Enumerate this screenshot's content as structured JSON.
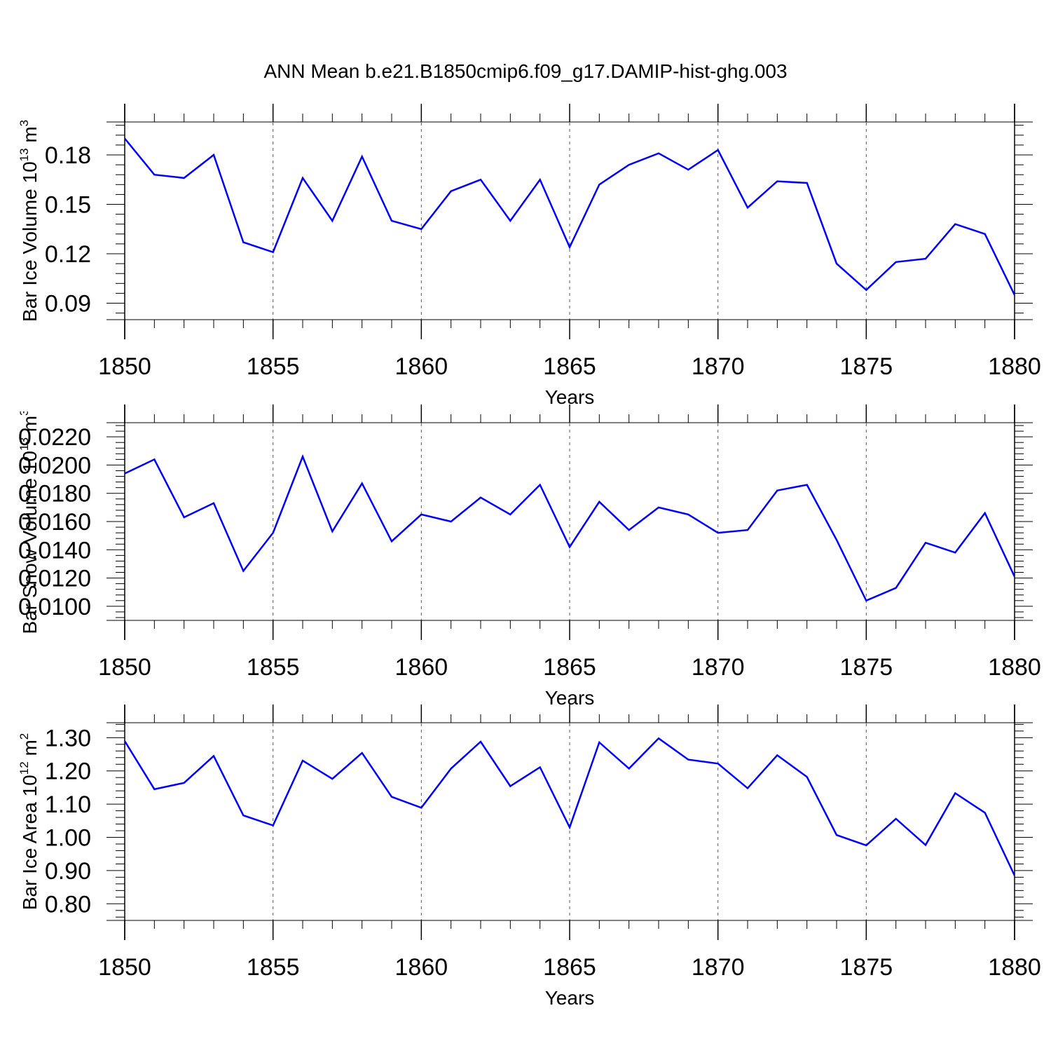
{
  "title": "ANN Mean b.e21.B1850cmip6.f09_g17.DAMIP-hist-ghg.003",
  "colors": {
    "series": "#0000ff",
    "axis": "#000000",
    "grid": "#555555"
  },
  "chart_data": [
    {
      "type": "line",
      "ylabel": {
        "main": "Bar Ice Volume 10",
        "exp": "13",
        "unit": " m",
        "unit_exp": "3"
      },
      "xlabel": "Years",
      "xlim": [
        1850,
        1880
      ],
      "ylim": [
        0.08,
        0.2
      ],
      "yticks": [
        0.09,
        0.12,
        0.15,
        0.18
      ],
      "ytick_labels": [
        "0.09",
        "0.12",
        "0.15",
        "0.18"
      ],
      "xticks": [
        1850,
        1855,
        1860,
        1865,
        1870,
        1875,
        1880
      ],
      "xtick_labels": [
        "1850",
        "1855",
        "1860",
        "1865",
        "1870",
        "1875",
        "1880"
      ],
      "grid": "vertical dashed at major x ticks",
      "series": [
        {
          "color": "#0000ff",
          "x": [
            1850,
            1851,
            1852,
            1853,
            1854,
            1855,
            1856,
            1857,
            1858,
            1859,
            1860,
            1861,
            1862,
            1863,
            1864,
            1865,
            1866,
            1867,
            1868,
            1869,
            1870,
            1871,
            1872,
            1873,
            1874,
            1875,
            1876,
            1877,
            1878,
            1879,
            1880
          ],
          "values": [
            0.19,
            0.168,
            0.166,
            0.18,
            0.127,
            0.121,
            0.166,
            0.14,
            0.179,
            0.14,
            0.135,
            0.158,
            0.165,
            0.14,
            0.165,
            0.124,
            0.162,
            0.174,
            0.181,
            0.171,
            0.183,
            0.148,
            0.164,
            0.163,
            0.114,
            0.098,
            0.115,
            0.117,
            0.138,
            0.132,
            0.095
          ]
        }
      ]
    },
    {
      "type": "line",
      "ylabel": {
        "main": "Bar Snow Volume 10",
        "exp": "13",
        "unit": " m",
        "unit_exp": "3"
      },
      "xlabel": "Years",
      "xlim": [
        1850,
        1880
      ],
      "ylim": [
        0.009,
        0.023
      ],
      "yticks": [
        0.01,
        0.012,
        0.014,
        0.016,
        0.018,
        0.02,
        0.022
      ],
      "ytick_labels": [
        "0.0100",
        "0.0120",
        "0.0140",
        "0.0160",
        "0.0180",
        "0.0200",
        "0.0220"
      ],
      "xticks": [
        1850,
        1855,
        1860,
        1865,
        1870,
        1875,
        1880
      ],
      "xtick_labels": [
        "1850",
        "1855",
        "1860",
        "1865",
        "1870",
        "1875",
        "1880"
      ],
      "grid": "vertical dashed at major x ticks",
      "series": [
        {
          "color": "#0000ff",
          "x": [
            1850,
            1851,
            1852,
            1853,
            1854,
            1855,
            1856,
            1857,
            1858,
            1859,
            1860,
            1861,
            1862,
            1863,
            1864,
            1865,
            1866,
            1867,
            1868,
            1869,
            1870,
            1871,
            1872,
            1873,
            1874,
            1875,
            1876,
            1877,
            1878,
            1879,
            1880
          ],
          "values": [
            0.0194,
            0.0204,
            0.0163,
            0.0173,
            0.0125,
            0.0152,
            0.0206,
            0.0153,
            0.0187,
            0.0146,
            0.0165,
            0.016,
            0.0177,
            0.0165,
            0.0186,
            0.0142,
            0.0174,
            0.0154,
            0.017,
            0.0165,
            0.0152,
            0.0154,
            0.0182,
            0.0186,
            0.0147,
            0.0104,
            0.0113,
            0.0145,
            0.0138,
            0.0166,
            0.0121
          ]
        }
      ]
    },
    {
      "type": "line",
      "ylabel": {
        "main": "Bar Ice Area 10",
        "exp": "12",
        "unit": " m",
        "unit_exp": "2"
      },
      "xlabel": "Years",
      "xlim": [
        1850,
        1880
      ],
      "ylim": [
        0.75,
        1.345
      ],
      "yticks": [
        0.8,
        0.9,
        1.0,
        1.1,
        1.2,
        1.3
      ],
      "ytick_labels": [
        "0.80",
        "0.90",
        "1.00",
        "1.10",
        "1.20",
        "1.30"
      ],
      "xticks": [
        1850,
        1855,
        1860,
        1865,
        1870,
        1875,
        1880
      ],
      "xtick_labels": [
        "1850",
        "1855",
        "1860",
        "1865",
        "1870",
        "1875",
        "1880"
      ],
      "grid": "vertical dashed at major x ticks",
      "series": [
        {
          "color": "#0000ff",
          "x": [
            1850,
            1851,
            1852,
            1853,
            1854,
            1855,
            1856,
            1857,
            1858,
            1859,
            1860,
            1861,
            1862,
            1863,
            1864,
            1865,
            1866,
            1867,
            1868,
            1869,
            1870,
            1871,
            1872,
            1873,
            1874,
            1875,
            1876,
            1877,
            1878,
            1879,
            1880
          ],
          "values": [
            1.29,
            1.145,
            1.164,
            1.245,
            1.066,
            1.036,
            1.231,
            1.176,
            1.254,
            1.122,
            1.089,
            1.207,
            1.288,
            1.154,
            1.211,
            1.03,
            1.286,
            1.207,
            1.298,
            1.234,
            1.222,
            1.148,
            1.247,
            1.182,
            1.007,
            0.976,
            1.056,
            0.977,
            1.133,
            1.074,
            0.885
          ]
        }
      ]
    }
  ]
}
